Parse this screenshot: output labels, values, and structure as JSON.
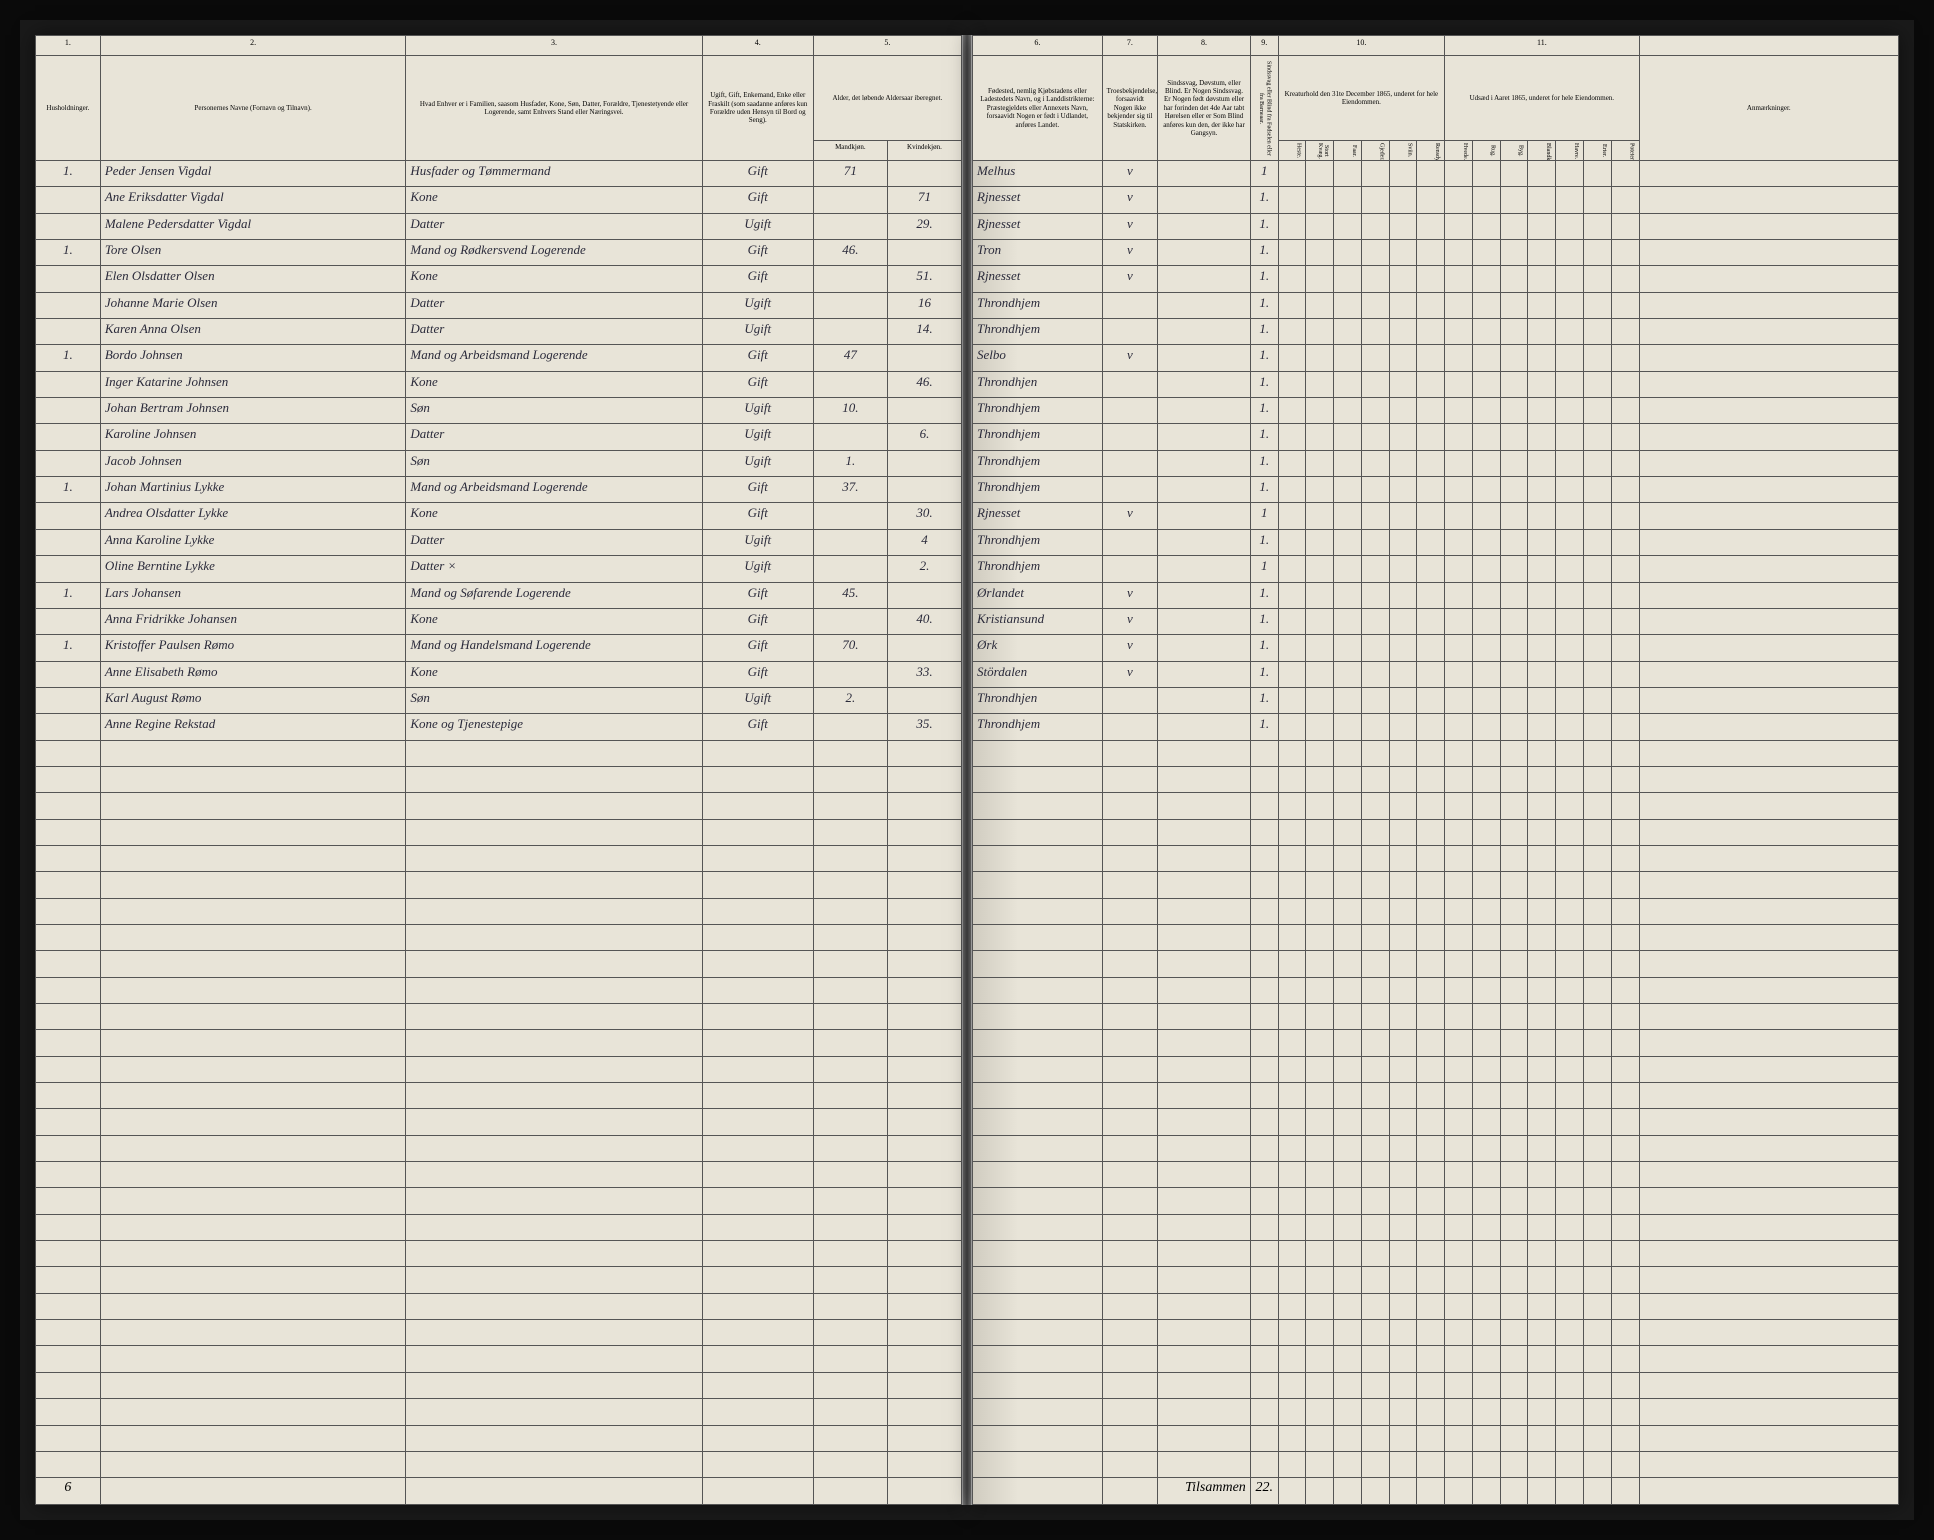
{
  "document_type": "Census/Parish Register (Norwegian, c. 1865)",
  "left_page": {
    "column_numbers": [
      "1.",
      "2.",
      "3.",
      "4.",
      "5."
    ],
    "column_headers": {
      "c1": "Husholdninger.",
      "c2": "Personernes Navne (Fornavn og Tilnavn).",
      "c3": "Hvad Enhver er i Familien, saasom Husfader, Kone, Søn, Datter, Forældre, Tjenestetyende eller Logerende, samt Enhvers Stand eller Næringsvei.",
      "c4": "Ugift, Gift, Enkemand, Enke eller Fraskilt (som saadanne anføres kun Forældre uden Hensyn til Bord og Seng).",
      "c5": "Alder, det løbende Aldersaar iberegnet.",
      "c5a": "Mandkjøn.",
      "c5b": "Kvindekjøn."
    }
  },
  "right_page": {
    "column_numbers": [
      "6.",
      "7.",
      "8.",
      "9.",
      "10.",
      "11."
    ],
    "column_headers": {
      "c6": "Fødested, nemlig Kjøbstadens eller Ladestedets Navn, og i Landdistrikterne: Præstegjeldets eller Annexets Navn, forsaavidt Nogen er født i Udlandet, anføres Landet.",
      "c7": "Troesbekjendelse, forsaavidt Nogen ikke bekjender sig til Statskirken.",
      "c8": "Sindssvag, Døvstum, eller Blind. Er Nogen Sindssvag. Er Nogen født døvstum eller har forinden det 4de Aar tabt Hørelsen eller er Som Blind anføres kun den, der ikke har Gangsyn.",
      "c9": "Sindssvag eller Blind fra Fødselen eller fra Barneaar.",
      "c10": "Kreaturhold den 31te December 1865, underet for hele Eiendommen.",
      "c10_sub": [
        "Heste.",
        "Stort Kvæg.",
        "Faar.",
        "Gjeder.",
        "Sviin.",
        "Rensdyr."
      ],
      "c10_sub2": [
        "Stl.",
        "Stl.",
        "Stl.",
        "Stl.",
        "Stl.",
        "Stl."
      ],
      "c11": "Udsæd i Aaret 1865, underet for hele Eiendommen.",
      "c11_sub": [
        "Hvede.",
        "Rug.",
        "Byg.",
        "Blandkorn.",
        "Havre.",
        "Erter.",
        "Poteter."
      ],
      "c11_sub2": [
        "Td.",
        "Td.",
        "Td.",
        "Td.",
        "Td.",
        "Td.",
        "Td."
      ],
      "c12": "Anmærkninger.",
      "tilsammen": "Tilsammen"
    }
  },
  "rows": [
    {
      "hh": "1.",
      "name": "Peder Jensen Vigdal",
      "rel": "Husfader og Tømmermand",
      "status": "Gift",
      "m": "71",
      "k": "",
      "birthplace": "Melhus",
      "mark": "v",
      "c9": "1"
    },
    {
      "hh": "",
      "name": "Ane Eriksdatter Vigdal",
      "rel": "Kone",
      "status": "Gift",
      "m": "",
      "k": "71",
      "birthplace": "Rjnesset",
      "mark": "v",
      "c9": "1."
    },
    {
      "hh": "",
      "name": "Malene Pedersdatter Vigdal",
      "rel": "Datter",
      "status": "Ugift",
      "m": "",
      "k": "29.",
      "birthplace": "Rjnesset",
      "mark": "v",
      "c9": "1."
    },
    {
      "hh": "1.",
      "name": "Tore Olsen",
      "rel": "Mand og Rødkersvend Logerende",
      "status": "Gift",
      "m": "46.",
      "k": "",
      "birthplace": "Tron",
      "mark": "v",
      "c9": "1."
    },
    {
      "hh": "",
      "name": "Elen Olsdatter Olsen",
      "rel": "Kone",
      "status": "Gift",
      "m": "",
      "k": "51.",
      "birthplace": "Rjnesset",
      "mark": "v",
      "c9": "1."
    },
    {
      "hh": "",
      "name": "Johanne Marie Olsen",
      "rel": "Datter",
      "status": "Ugift",
      "m": "",
      "k": "16",
      "birthplace": "Throndhjem",
      "mark": "",
      "c9": "1."
    },
    {
      "hh": "",
      "name": "Karen Anna Olsen",
      "rel": "Datter",
      "status": "Ugift",
      "m": "",
      "k": "14.",
      "birthplace": "Throndhjem",
      "mark": "",
      "c9": "1."
    },
    {
      "hh": "1.",
      "name": "Bordo Johnsen",
      "rel": "Mand og Arbeidsmand Logerende",
      "status": "Gift",
      "m": "47",
      "k": "",
      "birthplace": "Selbo",
      "mark": "v",
      "c9": "1."
    },
    {
      "hh": "",
      "name": "Inger Katarine Johnsen",
      "rel": "Kone",
      "status": "Gift",
      "m": "",
      "k": "46.",
      "birthplace": "Throndhjen",
      "mark": "",
      "c9": "1."
    },
    {
      "hh": "",
      "name": "Johan Bertram Johnsen",
      "rel": "Søn",
      "status": "Ugift",
      "m": "10.",
      "k": "",
      "birthplace": "Throndhjem",
      "mark": "",
      "c9": "1."
    },
    {
      "hh": "",
      "name": "Karoline Johnsen",
      "rel": "Datter",
      "status": "Ugift",
      "m": "",
      "k": "6.",
      "birthplace": "Throndhjem",
      "mark": "",
      "c9": "1."
    },
    {
      "hh": "",
      "name": "Jacob Johnsen",
      "rel": "Søn",
      "status": "Ugift",
      "m": "1.",
      "k": "",
      "birthplace": "Throndhjem",
      "mark": "",
      "c9": "1."
    },
    {
      "hh": "1.",
      "name": "Johan Martinius Lykke",
      "rel": "Mand og Arbeidsmand Logerende",
      "status": "Gift",
      "m": "37.",
      "k": "",
      "birthplace": "Throndhjem",
      "mark": "",
      "c9": "1."
    },
    {
      "hh": "",
      "name": "Andrea Olsdatter Lykke",
      "rel": "Kone",
      "status": "Gift",
      "m": "",
      "k": "30.",
      "birthplace": "Rjnesset",
      "mark": "v",
      "c9": "1"
    },
    {
      "hh": "",
      "name": "Anna Karoline Lykke",
      "rel": "Datter",
      "status": "Ugift",
      "m": "",
      "k": "4",
      "birthplace": "Throndhjem",
      "mark": "",
      "c9": "1."
    },
    {
      "hh": "",
      "name": "Oline Berntine Lykke",
      "rel": "Datter      ×",
      "status": "Ugift",
      "m": "",
      "k": "2.",
      "birthplace": "Throndhjem",
      "mark": "",
      "c9": "1"
    },
    {
      "hh": "1.",
      "name": "Lars Johansen",
      "rel": "Mand og Søfarende Logerende",
      "status": "Gift",
      "m": "45.",
      "k": "",
      "birthplace": "Ørlandet",
      "mark": "v",
      "c9": "1."
    },
    {
      "hh": "",
      "name": "Anna Fridrikke Johansen",
      "rel": "Kone",
      "status": "Gift",
      "m": "",
      "k": "40.",
      "birthplace": "Kristiansund",
      "mark": "v",
      "c9": "1."
    },
    {
      "hh": "1.",
      "name": "Kristoffer Paulsen Rømo",
      "rel": "Mand og Handelsmand Logerende",
      "status": "Gift",
      "m": "70.",
      "k": "",
      "birthplace": "Ørk",
      "mark": "v",
      "c9": "1."
    },
    {
      "hh": "",
      "name": "Anne Elisabeth Rømo",
      "rel": "Kone",
      "status": "Gift",
      "m": "",
      "k": "33.",
      "birthplace": "Stördalen",
      "mark": "v",
      "c9": "1."
    },
    {
      "hh": "",
      "name": "Karl August Rømo",
      "rel": "Søn",
      "status": "Ugift",
      "m": "2.",
      "k": "",
      "birthplace": "Throndhjen",
      "mark": "",
      "c9": "1."
    },
    {
      "hh": "",
      "name": "Anne Regine Rekstad",
      "rel": "Kone og Tjenestepige",
      "status": "Gift",
      "m": "",
      "k": "35.",
      "birthplace": "Throndhjem",
      "mark": "",
      "c9": "1."
    }
  ],
  "footer": {
    "left_total": "6",
    "right_label": "Tilsammen",
    "right_total": "22."
  },
  "empty_rows": 28,
  "colors": {
    "paper": "#e8e4d8",
    "ink": "#2a2a3a",
    "border": "#555555",
    "background": "#0a0a0a"
  }
}
